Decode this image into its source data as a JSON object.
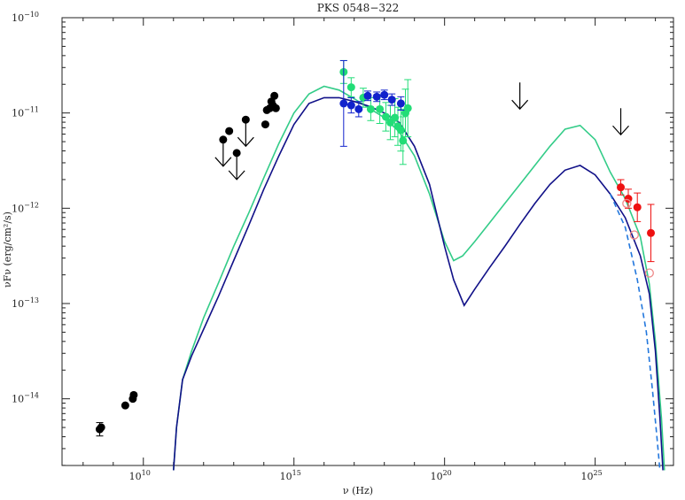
{
  "chart_data": {
    "type": "scatter",
    "title": "PKS 0548−322",
    "xlabel": "ν (Hz)",
    "ylabel": "νFν (erg/cm²/s)",
    "x_scale": "log",
    "y_scale": "log",
    "xlim_log10": [
      7.3,
      27.6
    ],
    "ylim_log10": [
      -14.7,
      -10
    ],
    "x_ticks": [
      {
        "log10": 10,
        "label": "10",
        "exp": "10"
      },
      {
        "log10": 15,
        "label": "10",
        "exp": "15"
      },
      {
        "log10": 20,
        "label": "10",
        "exp": "20"
      },
      {
        "log10": 25,
        "label": "10",
        "exp": "25"
      }
    ],
    "y_ticks": [
      {
        "log10": -10,
        "label": "10",
        "exp": "−10"
      },
      {
        "log10": -11,
        "label": "10",
        "exp": "−11"
      },
      {
        "log10": -12,
        "label": "10",
        "exp": "−12"
      },
      {
        "log10": -13,
        "label": "10",
        "exp": "−13"
      },
      {
        "log10": -14,
        "label": "10",
        "exp": "−14"
      }
    ],
    "colors": {
      "archival": "#000000",
      "optical_xray_green": "#22dd77",
      "xray_blue": "#1122cc",
      "hess": "#ee1111",
      "hess_deabsorbed": "#ee8888",
      "model_green": "#33cc88",
      "model_blue": "#111188",
      "model_dashed": "#2277dd"
    },
    "series": [
      {
        "key": "archival",
        "points": [
          {
            "x": 8.55,
            "y": -14.32,
            "err": 0.07
          },
          {
            "x": 8.6,
            "y": -14.3
          },
          {
            "x": 9.4,
            "y": -14.07
          },
          {
            "x": 9.65,
            "y": -14.0
          },
          {
            "x": 9.68,
            "y": -13.96
          },
          {
            "x": 12.65,
            "y": -11.28
          },
          {
            "x": 12.85,
            "y": -11.19
          },
          {
            "x": 13.1,
            "y": -11.42
          },
          {
            "x": 13.4,
            "y": -11.07
          },
          {
            "x": 14.05,
            "y": -11.12
          },
          {
            "x": 14.1,
            "y": -10.97
          },
          {
            "x": 14.2,
            "y": -10.95
          },
          {
            "x": 14.3,
            "y": -10.92
          },
          {
            "x": 14.25,
            "y": -10.88
          },
          {
            "x": 14.35,
            "y": -10.82
          },
          {
            "x": 14.4,
            "y": -10.95
          }
        ]
      },
      {
        "key": "upper_limits",
        "points": [
          {
            "x": 12.65,
            "y": -11.28
          },
          {
            "x": 13.1,
            "y": -11.42
          },
          {
            "x": 13.4,
            "y": -11.07
          },
          {
            "x": 22.5,
            "y": -10.68
          },
          {
            "x": 25.85,
            "y": -10.95
          }
        ]
      },
      {
        "key": "optical_xray_green",
        "points": [
          {
            "x": 16.65,
            "y": -10.57,
            "err": 0.12
          },
          {
            "x": 16.9,
            "y": -10.73,
            "err": 0.1
          },
          {
            "x": 17.3,
            "y": -10.84,
            "err": 0.1
          },
          {
            "x": 17.55,
            "y": -10.96,
            "err": 0.12
          },
          {
            "x": 17.85,
            "y": -10.96,
            "err": 0.15
          },
          {
            "x": 18.05,
            "y": -11.04,
            "err": 0.15
          },
          {
            "x": 18.2,
            "y": -11.1,
            "err": 0.18
          },
          {
            "x": 18.35,
            "y": -11.05,
            "err": 0.2
          },
          {
            "x": 18.45,
            "y": -11.14,
            "err": 0.2
          },
          {
            "x": 18.55,
            "y": -11.18,
            "err": 0.22
          },
          {
            "x": 18.62,
            "y": -11.29,
            "err": 0.25
          },
          {
            "x": 18.7,
            "y": -11.0,
            "err": 0.25
          },
          {
            "x": 18.78,
            "y": -10.95,
            "err": 0.3
          }
        ]
      },
      {
        "key": "xray_blue",
        "points": [
          {
            "x": 16.65,
            "y": -10.9,
            "err": 0.45
          },
          {
            "x": 16.9,
            "y": -10.92,
            "err": 0.08
          },
          {
            "x": 17.15,
            "y": -10.96,
            "err": 0.08
          },
          {
            "x": 17.45,
            "y": -10.82,
            "err": 0.05
          },
          {
            "x": 17.75,
            "y": -10.83,
            "err": 0.05
          },
          {
            "x": 18.0,
            "y": -10.81,
            "err": 0.05
          },
          {
            "x": 18.25,
            "y": -10.86,
            "err": 0.06
          },
          {
            "x": 18.55,
            "y": -10.9,
            "err": 0.07
          }
        ]
      },
      {
        "key": "hess",
        "points": [
          {
            "x": 25.85,
            "y": -11.78,
            "err": 0.08
          },
          {
            "x": 26.1,
            "y": -11.9,
            "err": 0.1
          },
          {
            "x": 26.4,
            "y": -11.99,
            "err": 0.15
          },
          {
            "x": 26.85,
            "y": -12.26,
            "err": 0.3
          }
        ]
      },
      {
        "key": "hess_deabsorbed",
        "points": [
          {
            "x": 26.05,
            "y": -11.95
          },
          {
            "x": 26.3,
            "y": -12.28
          },
          {
            "x": 26.8,
            "y": -12.68
          }
        ]
      }
    ],
    "models": [
      {
        "key": "model_green",
        "points": [
          [
            11.0,
            -14.75
          ],
          [
            11.1,
            -14.3
          ],
          [
            11.3,
            -13.8
          ],
          [
            11.6,
            -13.5
          ],
          [
            12.0,
            -13.15
          ],
          [
            12.5,
            -12.78
          ],
          [
            13.0,
            -12.4
          ],
          [
            13.5,
            -12.05
          ],
          [
            14.0,
            -11.68
          ],
          [
            14.5,
            -11.32
          ],
          [
            15.0,
            -11.0
          ],
          [
            15.5,
            -10.8
          ],
          [
            16.0,
            -10.72
          ],
          [
            16.5,
            -10.76
          ],
          [
            17.0,
            -10.85
          ],
          [
            17.5,
            -10.95
          ],
          [
            18.0,
            -11.05
          ],
          [
            18.5,
            -11.2
          ],
          [
            19.0,
            -11.45
          ],
          [
            19.5,
            -11.85
          ],
          [
            20.0,
            -12.35
          ],
          [
            20.3,
            -12.55
          ],
          [
            20.6,
            -12.5
          ],
          [
            21.0,
            -12.35
          ],
          [
            21.5,
            -12.15
          ],
          [
            22.0,
            -11.95
          ],
          [
            22.5,
            -11.75
          ],
          [
            23.0,
            -11.55
          ],
          [
            23.5,
            -11.35
          ],
          [
            24.0,
            -11.17
          ],
          [
            24.5,
            -11.13
          ],
          [
            25.0,
            -11.28
          ],
          [
            25.5,
            -11.62
          ],
          [
            26.0,
            -11.9
          ],
          [
            26.5,
            -12.3
          ],
          [
            26.8,
            -12.8
          ],
          [
            27.0,
            -13.4
          ],
          [
            27.2,
            -14.2
          ],
          [
            27.3,
            -14.75
          ]
        ]
      },
      {
        "key": "model_blue",
        "points": [
          [
            11.0,
            -14.75
          ],
          [
            11.1,
            -14.3
          ],
          [
            11.3,
            -13.8
          ],
          [
            11.6,
            -13.55
          ],
          [
            12.0,
            -13.27
          ],
          [
            12.5,
            -12.92
          ],
          [
            13.0,
            -12.55
          ],
          [
            13.5,
            -12.18
          ],
          [
            14.0,
            -11.8
          ],
          [
            14.5,
            -11.45
          ],
          [
            15.0,
            -11.12
          ],
          [
            15.5,
            -10.9
          ],
          [
            16.0,
            -10.84
          ],
          [
            16.5,
            -10.84
          ],
          [
            17.0,
            -10.88
          ],
          [
            17.5,
            -10.93
          ],
          [
            18.0,
            -11.0
          ],
          [
            18.5,
            -11.1
          ],
          [
            19.0,
            -11.35
          ],
          [
            19.5,
            -11.75
          ],
          [
            20.0,
            -12.4
          ],
          [
            20.3,
            -12.75
          ],
          [
            20.65,
            -13.02
          ],
          [
            21.0,
            -12.85
          ],
          [
            21.5,
            -12.62
          ],
          [
            22.0,
            -12.4
          ],
          [
            22.5,
            -12.17
          ],
          [
            23.0,
            -11.95
          ],
          [
            23.5,
            -11.75
          ],
          [
            24.0,
            -11.6
          ],
          [
            24.5,
            -11.55
          ],
          [
            25.0,
            -11.65
          ],
          [
            25.5,
            -11.85
          ],
          [
            26.0,
            -12.1
          ],
          [
            26.5,
            -12.5
          ],
          [
            26.8,
            -12.9
          ],
          [
            27.0,
            -13.5
          ],
          [
            27.15,
            -14.2
          ],
          [
            27.25,
            -14.75
          ]
        ]
      },
      {
        "key": "model_dashed",
        "dashed": true,
        "points": [
          [
            25.5,
            -11.85
          ],
          [
            26.0,
            -12.2
          ],
          [
            26.4,
            -12.75
          ],
          [
            26.7,
            -13.3
          ],
          [
            26.9,
            -13.9
          ],
          [
            27.05,
            -14.4
          ],
          [
            27.15,
            -14.75
          ]
        ]
      }
    ],
    "legend": "none",
    "grid": false
  }
}
